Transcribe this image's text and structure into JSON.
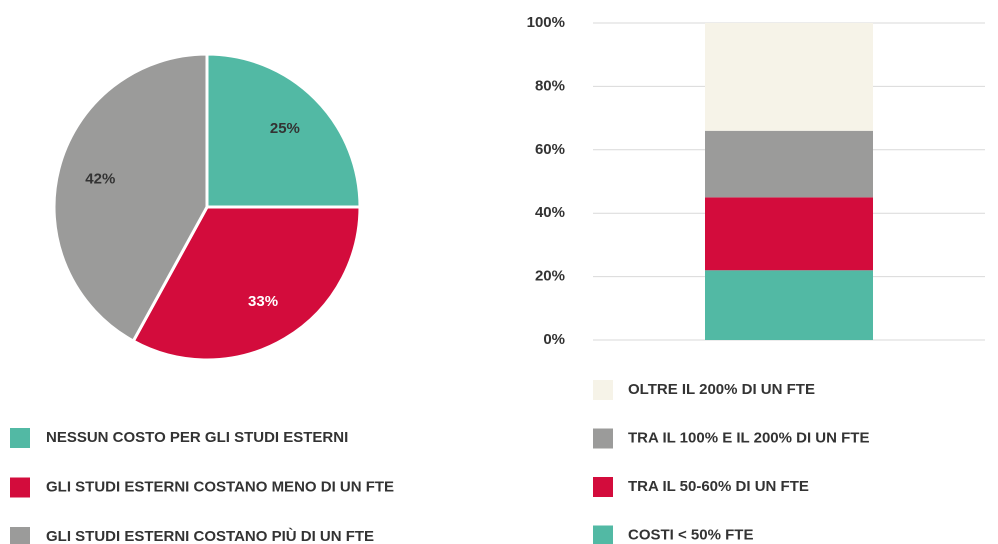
{
  "chart_data": [
    {
      "type": "pie",
      "categories": [
        "NESSUN COSTO PER GLI STUDI ESTERNI",
        "GLI STUDI ESTERNI COSTANO MENO DI UN FTE",
        "GLI STUDI ESTERNI COSTANO PIÙ DI UN FTE"
      ],
      "values": [
        25,
        33,
        42
      ],
      "value_labels": [
        "25%",
        "33%",
        "42%"
      ],
      "colors": [
        "#52b9a4",
        "#d30c3c",
        "#9b9b9a"
      ]
    },
    {
      "type": "stacked-bar",
      "categories": [
        null
      ],
      "series": [
        {
          "name": "COSTI < 50% FTE",
          "color": "#52b9a4",
          "values": [
            22
          ]
        },
        {
          "name": "TRA IL 50-60% DI UN FTE",
          "color": "#d30c3c",
          "values": [
            23
          ]
        },
        {
          "name": "TRA IL 100% E IL 200% DI UN FTE",
          "color": "#9b9b9a",
          "values": [
            21
          ]
        },
        {
          "name": "OLTRE IL 200% DI UN FTE",
          "color": "#f6f3e8",
          "values": [
            34
          ]
        }
      ],
      "ylim": [
        0,
        100
      ],
      "yticks": [
        {
          "value": 0,
          "label": "0%"
        },
        {
          "value": 20,
          "label": "20%"
        },
        {
          "value": 40,
          "label": "40%"
        },
        {
          "value": 60,
          "label": "60%"
        },
        {
          "value": 80,
          "label": "80%"
        },
        {
          "value": 100,
          "label": "100%"
        }
      ],
      "grid": true
    }
  ]
}
